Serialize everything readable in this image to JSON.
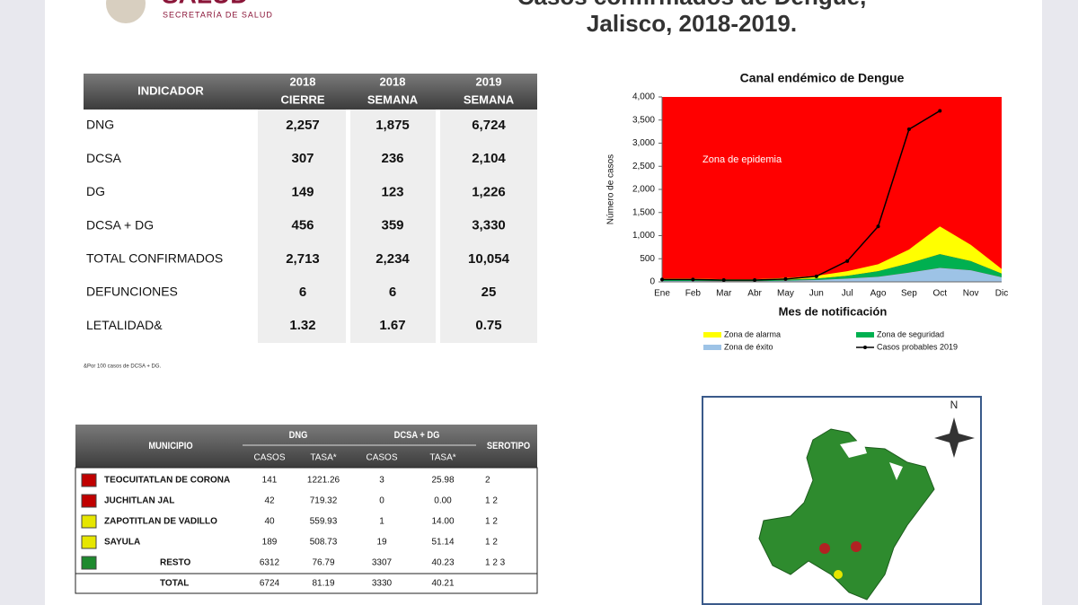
{
  "header": {
    "logo": "SALUD",
    "agency": "SECRETARÍA DE SALUD",
    "title_line1": "Casos confirmados de Dengue,",
    "title_line2": "Jalisco, 2018-2019."
  },
  "indicators": {
    "columns": [
      [
        "INDICADOR"
      ],
      [
        "2018",
        "CIERRE"
      ],
      [
        "2018",
        "SEMANA"
      ],
      [
        "2019",
        "SEMANA"
      ]
    ],
    "rows": [
      [
        "DNG",
        "2,257",
        "1,875",
        "6,724"
      ],
      [
        "DCSA",
        "307",
        "236",
        "2,104"
      ],
      [
        "DG",
        "149",
        "123",
        "1,226"
      ],
      [
        "DCSA + DG",
        "456",
        "359",
        "3,330"
      ],
      [
        "TOTAL CONFIRMADOS",
        "2,713",
        "2,234",
        "10,054"
      ],
      [
        "DEFUNCIONES",
        "6",
        "6",
        "25"
      ],
      [
        "LETALIDAD&",
        "1.32",
        "1.67",
        "0.75"
      ]
    ],
    "footnote": "&Por 100 casos de DCSA + DG."
  },
  "chart_data": {
    "type": "area",
    "title": "Canal endémico de Dengue",
    "x_label": "Mes de notificación",
    "y_label": "Número de casos",
    "annotation": "Zona de epidemia",
    "background_color": "#ff0000",
    "categories": [
      "Ene",
      "Feb",
      "Mar",
      "Abr",
      "May",
      "Jun",
      "Jul",
      "Ago",
      "Sep",
      "Oct",
      "Nov",
      "Dic"
    ],
    "series": [
      {
        "name": "Zona de éxito",
        "color": "#9dc3e6",
        "values": [
          20,
          20,
          15,
          15,
          25,
          40,
          70,
          110,
          200,
          300,
          250,
          100
        ]
      },
      {
        "name": "Zona de seguridad",
        "color": "#00b050",
        "values": [
          20,
          20,
          15,
          15,
          20,
          30,
          60,
          120,
          200,
          300,
          200,
          80
        ]
      },
      {
        "name": "Zona de alarma",
        "color": "#ffff00",
        "values": [
          30,
          30,
          25,
          25,
          40,
          60,
          100,
          150,
          300,
          600,
          350,
          100
        ]
      },
      {
        "name": "Casos probables 2019",
        "color": "#000000",
        "type": "line",
        "values": [
          50,
          50,
          40,
          40,
          60,
          120,
          450,
          1200,
          3300,
          3700,
          null,
          null
        ]
      }
    ],
    "ylim": [
      0,
      4000
    ],
    "yticks": [
      0,
      500,
      {
        "value": 1000,
        "label": "1,000"
      },
      {
        "value": 1500,
        "label": "1,500"
      },
      {
        "value": 2000,
        "label": "2,000"
      },
      {
        "value": 2500,
        "label": "2,500"
      },
      {
        "value": 3000,
        "label": "3,000"
      },
      {
        "value": 3500,
        "label": "3,500"
      },
      {
        "value": 4000,
        "label": "4,000"
      }
    ],
    "legend": "bottom"
  },
  "municipios": {
    "header": [
      "MUNICIPIO",
      "DNG",
      "DCSA + DG",
      "SEROTIPO"
    ],
    "subheader": [
      "CASOS",
      "TASA*",
      "CASOS",
      "TASA*"
    ],
    "rows": [
      {
        "color": "#c00000",
        "cells": [
          "TEOCUITATLAN DE CORONA",
          "141",
          "1221.26",
          "3",
          "25.98",
          "2"
        ]
      },
      {
        "color": "#c00000",
        "cells": [
          "JUCHITLAN JAL",
          "42",
          "719.32",
          "0",
          "0.00",
          "1  2"
        ]
      },
      {
        "color": "#e6e600",
        "cells": [
          "ZAPOTITLAN DE VADILLO",
          "40",
          "559.93",
          "1",
          "14.00",
          "1  2"
        ]
      },
      {
        "color": "#e6e600",
        "cells": [
          "SAYULA",
          "189",
          "508.73",
          "19",
          "51.14",
          "1  2"
        ]
      },
      {
        "color": "#1e8a2e",
        "cells": [
          "RESTO",
          "6312",
          "76.79",
          "3307",
          "40.23",
          "1  2  3"
        ]
      },
      {
        "cells": [
          "TOTAL",
          "6724",
          "81.19",
          "3330",
          "40.21"
        ]
      }
    ]
  },
  "map": {
    "north": "N"
  }
}
